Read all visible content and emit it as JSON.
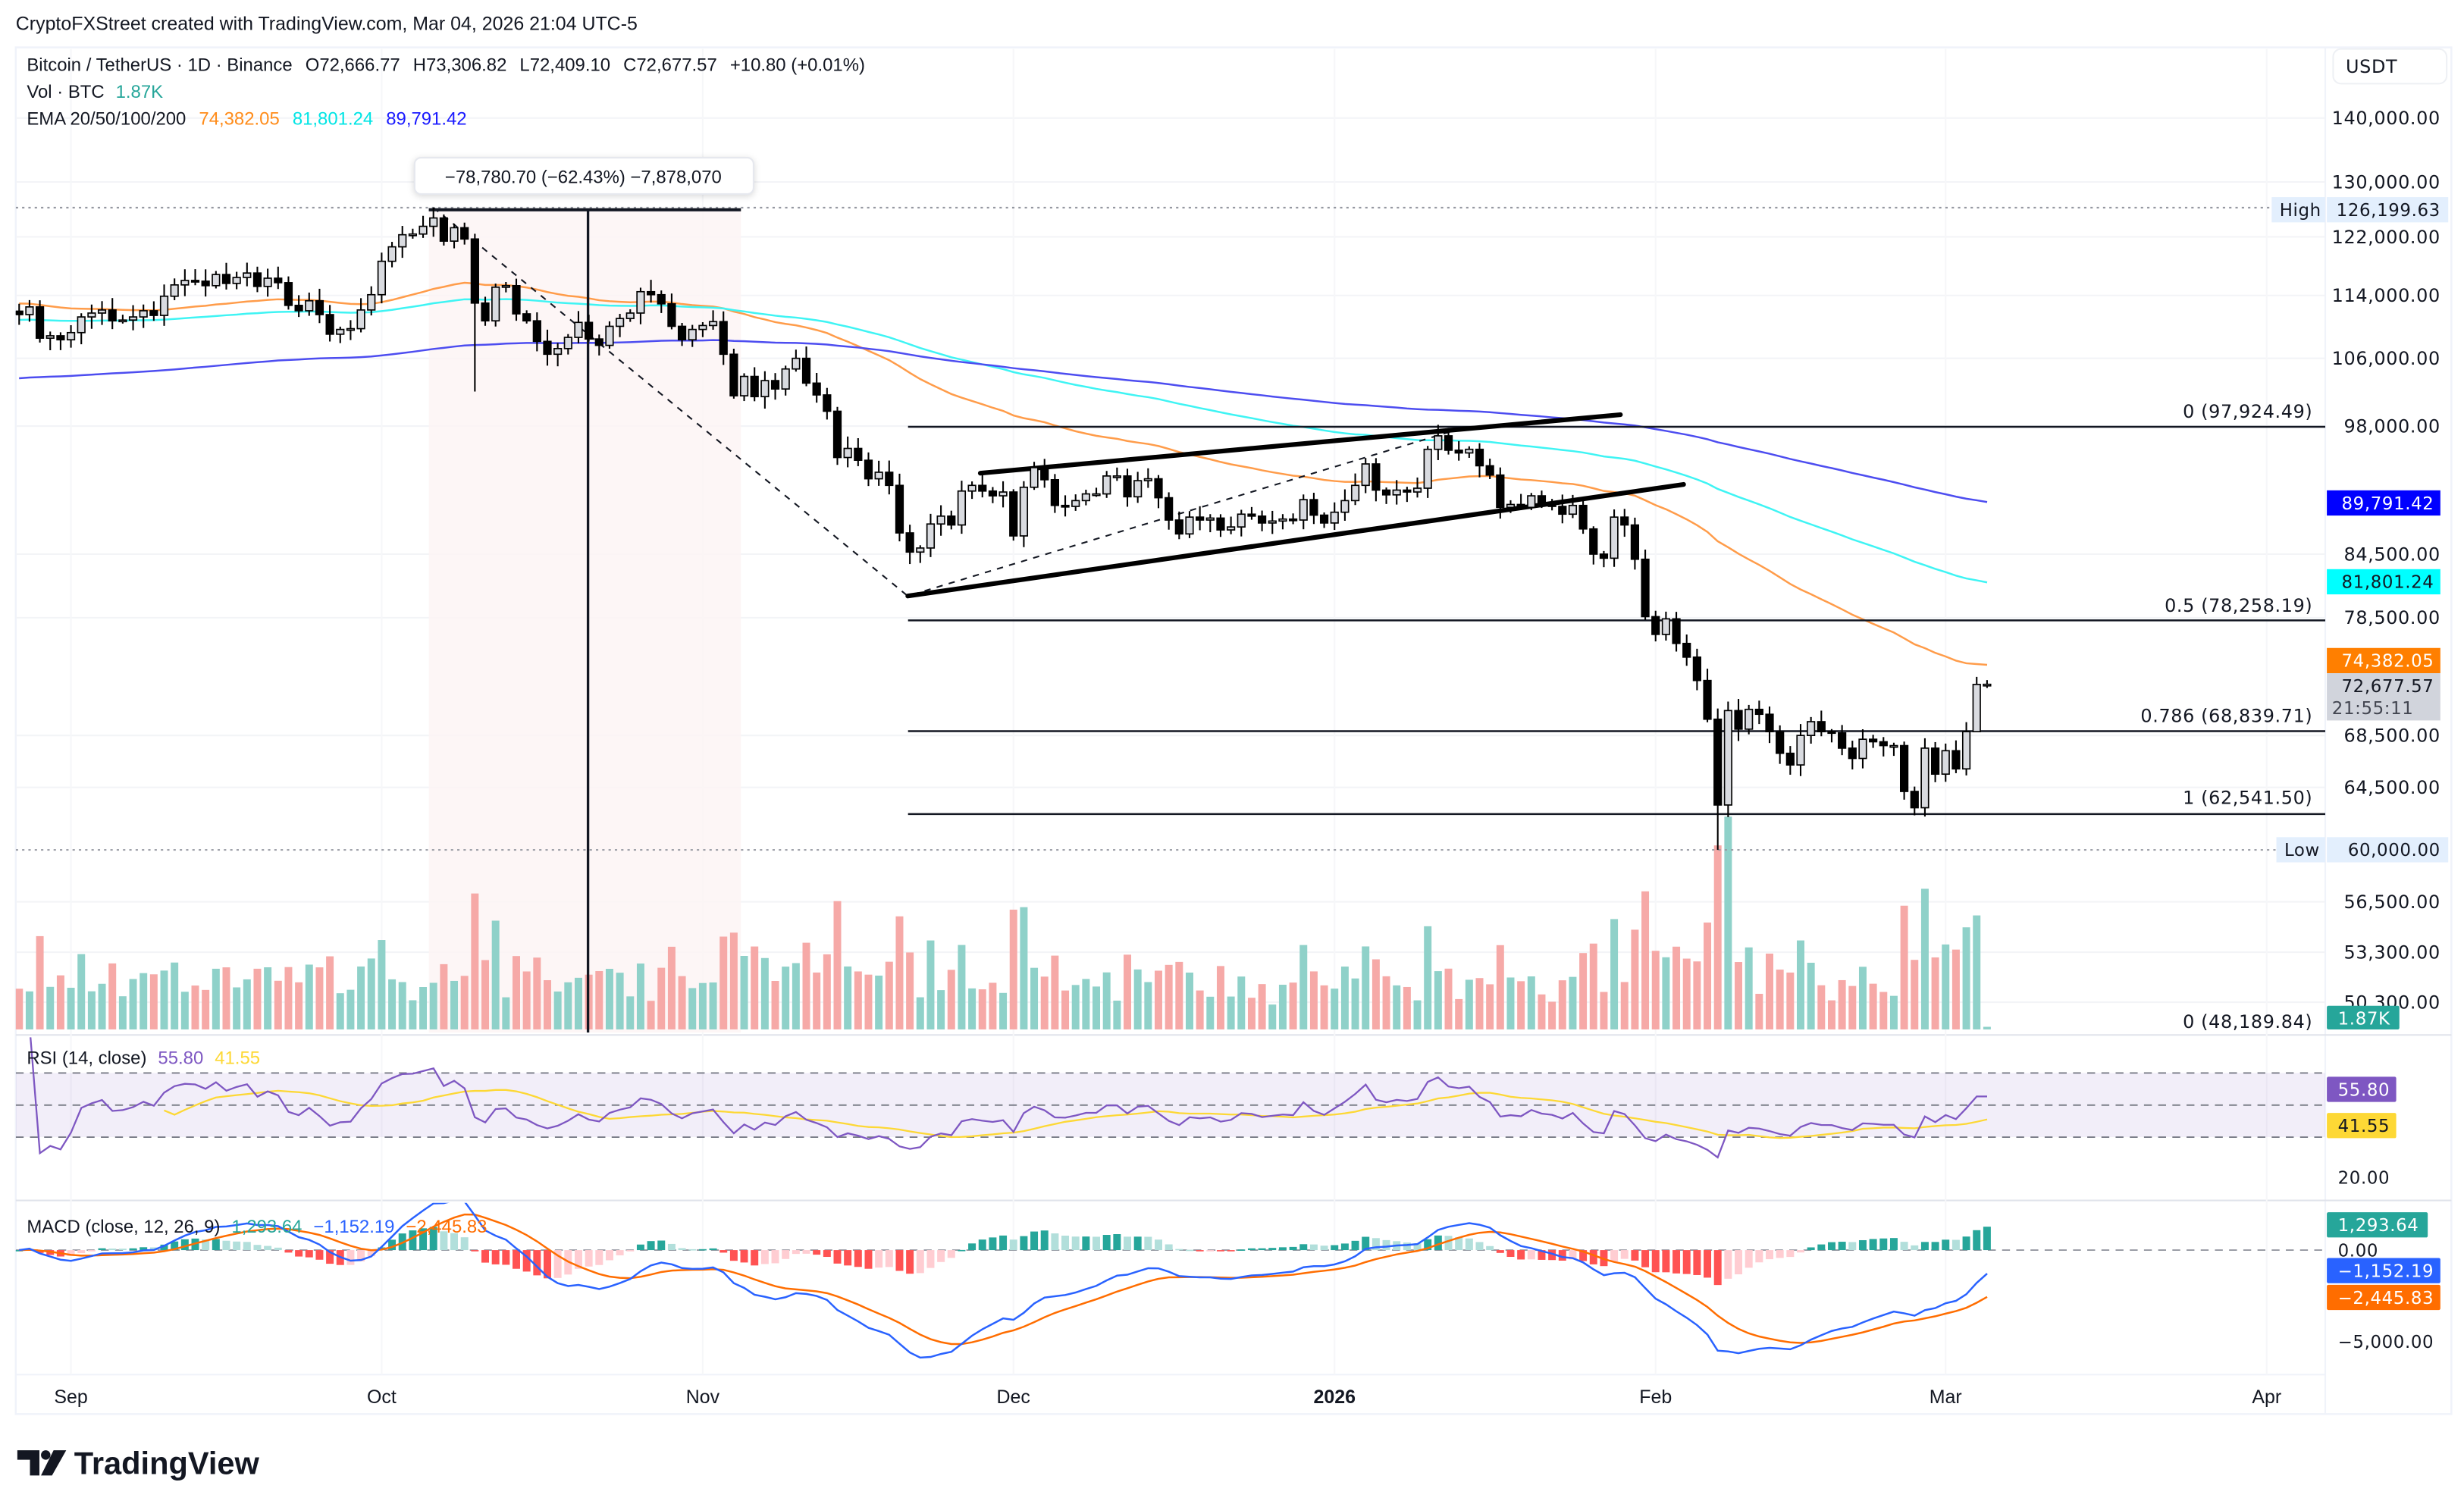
{
  "header": {
    "attribution": "CryptoFXStreet created with TradingView.com, Mar 04, 2026 21:04 UTC-5"
  },
  "legend": {
    "symbol": "Bitcoin / TetherUS · 1D · Binance",
    "open": "O72,666.77",
    "high": "H73,306.82",
    "low": "L72,409.10",
    "close": "C72,677.57",
    "change": "+10.80 (+0.01%)",
    "vol_label": "Vol · BTC",
    "vol_value": "1.87K",
    "ema_label": "EMA 20/50/100/200",
    "ema_values": [
      "74,382.05",
      "81,801.24",
      "89,791.42"
    ]
  },
  "colors": {
    "up_volume": "#8fd1c9",
    "down_volume": "#f6a9a7",
    "ema_orange": "#ff9c4a",
    "ema_cyan": "#3ff4f4",
    "ema_blue": "#4d4df0",
    "rsi": "#7e57c2",
    "rsi_ma": "#fdd835",
    "macd": "#2962ff",
    "signal": "#ff6d00",
    "hist_up": "#26a69a",
    "hist_up_light": "#b2dfdb",
    "hist_down": "#ff5252",
    "hist_down_light": "#ffcdd2"
  },
  "axis": {
    "currency": "USDT",
    "price_ticks": [
      140000,
      130000,
      122000,
      114000,
      106000,
      98000,
      84500,
      78500,
      68500,
      64500,
      56500,
      53300,
      50300
    ],
    "price_tick_labels": [
      "140,000.00",
      "130,000.00",
      "122,000.00",
      "114,000.00",
      "106,000.00",
      "98,000.00",
      "84,500.00",
      "78,500.00",
      "68,500.00",
      "64,500.00",
      "56,500.00",
      "53,300.00",
      "50,300.00"
    ],
    "high_label": "High",
    "high_value": "126,199.63",
    "low_label": "Low",
    "low_value": "60,000.00",
    "ema200_value": "89,791.42",
    "ema100_value": "81,801.24",
    "ema50_value": "74,382.05",
    "last_price": "72,677.57",
    "countdown": "21:55:11",
    "volume_value": "1.87K",
    "rsi_ticks": [
      "20.00"
    ],
    "rsi_value": "55.80",
    "rsi_ma_value": "41.55",
    "macd_ticks": [
      "0.00",
      "−5,000.00"
    ],
    "hist_value": "1,293.64",
    "macd_value": "−1,152.19",
    "signal_value": "−2,445.83"
  },
  "annotations": {
    "measure_label": "−78,780.70 (−62.43%) −7,878,070",
    "fib": [
      {
        "label": "0 (97,924.49)",
        "price": 97924.49
      },
      {
        "label": "0.5 (78,258.19)",
        "price": 78258.19
      },
      {
        "label": "0.786 (68,839.71)",
        "price": 68839.71
      },
      {
        "label": "1 (62,541.50)",
        "price": 62541.5
      }
    ],
    "fib_extra_label": "0 (48,189.84)"
  },
  "rsi": {
    "label": "RSI (14, close)",
    "value": "55.80",
    "ma_value": "41.55"
  },
  "macd": {
    "label": "MACD (close, 12, 26, 9)",
    "hist": "1,293.64",
    "macd": "−1,152.19",
    "signal": "−2,445.83"
  },
  "time_axis": [
    {
      "label": "Sep",
      "index": 5,
      "bold": false
    },
    {
      "label": "Oct",
      "index": 35,
      "bold": false
    },
    {
      "label": "Nov",
      "index": 66,
      "bold": false
    },
    {
      "label": "Dec",
      "index": 96,
      "bold": false
    },
    {
      "label": "2026",
      "index": 127,
      "bold": true
    },
    {
      "label": "Feb",
      "index": 158,
      "bold": false
    },
    {
      "label": "Mar",
      "index": 186,
      "bold": false
    },
    {
      "label": "Apr",
      "index": 217,
      "bold": false
    }
  ],
  "footer": {
    "logo_text": "TradingView"
  },
  "chart_data": {
    "type": "candlestick",
    "title": "Bitcoin / TetherUS · 1D · Binance",
    "start_date": "2025-08-27",
    "ylabel": "USDT",
    "ylim": [
      48000,
      145000
    ],
    "scale": "log",
    "close": [
      111500,
      112500,
      108500,
      108800,
      108300,
      109200,
      111200,
      111700,
      112100,
      110700,
      110800,
      111200,
      112000,
      111400,
      113900,
      115400,
      116000,
      115900,
      115300,
      116800,
      115600,
      116400,
      117000,
      115200,
      116300,
      115700,
      112700,
      112000,
      113300,
      111500,
      109000,
      109600,
      109700,
      112100,
      114100,
      118600,
      120600,
      122300,
      122400,
      123500,
      124700,
      121400,
      123300,
      121700,
      113000,
      110700,
      115100,
      115300,
      111600,
      110700,
      108100,
      106500,
      107200,
      108600,
      110500,
      108400,
      107600,
      110000,
      111000,
      111700,
      114500,
      114100,
      112900,
      110000,
      108300,
      109600,
      110100,
      110600,
      106500,
      101500,
      103800,
      101400,
      103300,
      102300,
      104700,
      106000,
      103000,
      101600,
      99700,
      94500,
      95500,
      94200,
      92200,
      92900,
      91500,
      86600,
      84700,
      85100,
      87500,
      88300,
      87400,
      90900,
      91500,
      90900,
      90400,
      90800,
      86300,
      91300,
      93400,
      92100,
      89400,
      89300,
      89900,
      90600,
      90600,
      92500,
      92500,
      90300,
      92000,
      92200,
      90200,
      87900,
      86500,
      88200,
      87900,
      88100,
      86900,
      87200,
      88500,
      88300,
      87600,
      87800,
      88000,
      87900,
      90000,
      88400,
      87600,
      88700,
      89900,
      91500,
      93800,
      91000,
      90500,
      91000,
      90800,
      91200,
      95400,
      96900,
      95300,
      95000,
      95400,
      93600,
      92600,
      89200,
      89500,
      89200,
      90400,
      89600,
      89300,
      88500,
      89400,
      87000,
      84500,
      84100,
      88200,
      87400,
      84000,
      78600,
      77000,
      78400,
      76200,
      75000,
      73000,
      69800,
      63200,
      70500,
      69000,
      70600,
      70200,
      68800,
      67100,
      66200,
      68500,
      69600,
      68800,
      68700,
      67500,
      66700,
      68200,
      68000,
      67700,
      67700,
      64200,
      63000,
      67500,
      65500,
      67300,
      65900,
      68800,
      72666.77,
      72677.57
    ],
    "extremes": [
      {
        "index": 40,
        "high": 126199.63
      },
      {
        "index": 44,
        "low": 102000
      },
      {
        "index": 164,
        "low": 60000
      },
      {
        "index": 189,
        "high": 73306.82,
        "low": 72409.1
      }
    ],
    "ema_periods": [
      50,
      100,
      200
    ],
    "ema_seed": [
      113000,
      110800,
      103500
    ],
    "rsi_period": 14,
    "macd_params": [
      12,
      26,
      9
    ]
  }
}
